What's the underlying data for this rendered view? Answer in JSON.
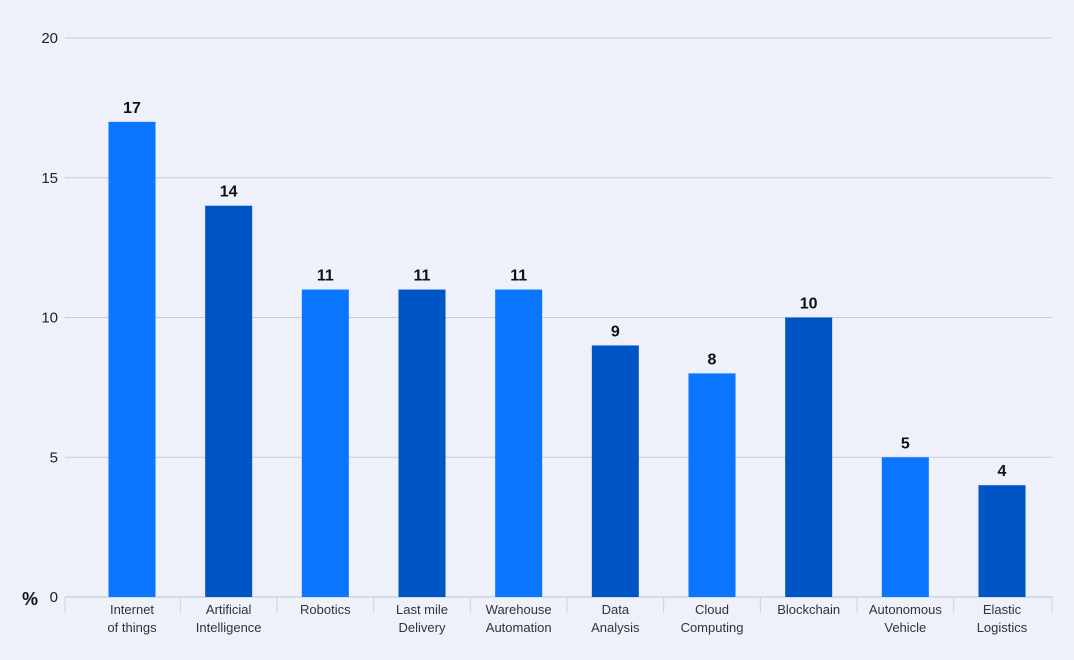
{
  "chart_data": {
    "type": "bar",
    "title": "",
    "xlabel": "",
    "ylabel": "%",
    "ylim": [
      0,
      20
    ],
    "yticks": [
      0,
      5,
      10,
      15,
      20
    ],
    "grid": true,
    "categories": [
      [
        "Internet",
        "of things"
      ],
      [
        "Artificial",
        "Intelligence"
      ],
      [
        "Robotics"
      ],
      [
        "Last mile",
        "Delivery"
      ],
      [
        "Warehouse",
        "Automation"
      ],
      [
        "Data",
        "Analysis"
      ],
      [
        "Cloud",
        "Computing"
      ],
      [
        "Blockchain"
      ],
      [
        "Autonomous",
        "Vehicle"
      ],
      [
        "Elastic",
        "Logistics"
      ]
    ],
    "values": [
      17,
      14,
      11,
      11,
      11,
      9,
      8,
      10,
      5,
      4
    ],
    "colors": [
      "#0a75ff",
      "#0055c4"
    ]
  }
}
